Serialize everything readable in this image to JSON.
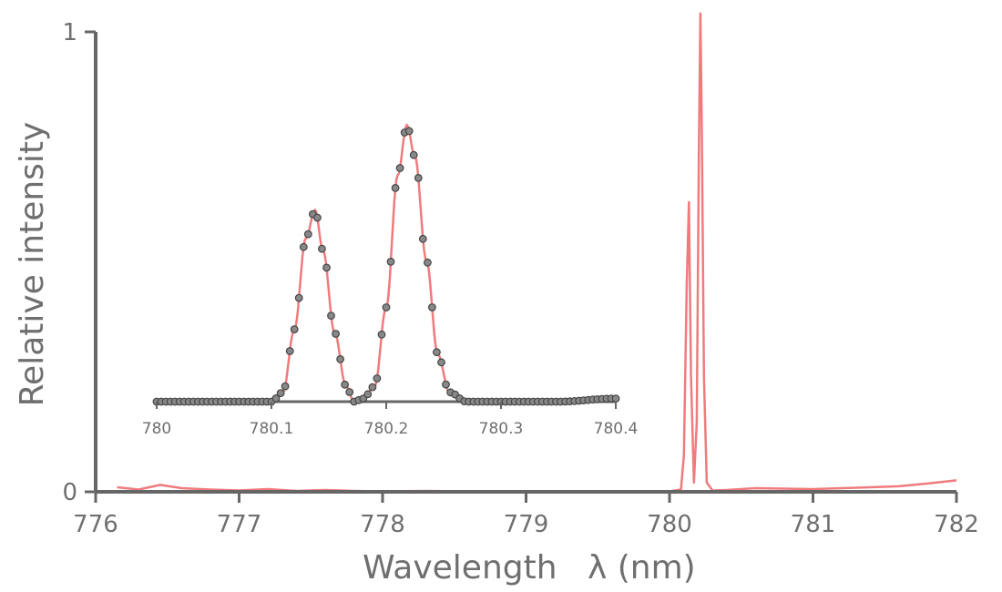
{
  "chart_data": {
    "type": "line",
    "main": {
      "xlabel": "Wavelength",
      "xlabel_symbol": "λ (nm)",
      "ylabel": "Relative intensity",
      "xlim": [
        776,
        782
      ],
      "ylim": [
        0,
        1
      ],
      "xticks": [
        "776",
        "777",
        "778",
        "779",
        "780",
        "781",
        "782"
      ],
      "yticks": [
        "0",
        "1"
      ],
      "grid": false,
      "line_color": "#ef7b7d",
      "axis_color": "#666666",
      "series": [
        {
          "x": [
            776.15,
            776.3,
            776.45,
            776.6,
            776.8,
            777.0,
            777.2,
            777.4,
            777.6,
            777.8,
            778.0,
            778.3,
            778.6,
            779.0,
            779.5,
            780.0,
            780.08,
            780.1,
            780.12,
            780.135,
            780.15,
            780.17,
            780.19,
            780.205,
            780.215,
            780.225,
            780.24,
            780.26,
            780.3,
            780.4,
            780.5,
            780.6,
            780.8,
            781.0,
            781.2,
            781.4,
            781.6,
            781.8,
            782.0
          ],
          "y": [
            0.01,
            0.005,
            0.015,
            0.008,
            0.005,
            0.003,
            0.006,
            0.002,
            0.004,
            0.002,
            0.001,
            0.002,
            0.001,
            0.001,
            0.001,
            0.001,
            0.005,
            0.08,
            0.45,
            0.63,
            0.25,
            0.02,
            0.15,
            0.75,
            1.04,
            0.8,
            0.25,
            0.02,
            0.003,
            0.004,
            0.006,
            0.008,
            0.007,
            0.006,
            0.008,
            0.01,
            0.012,
            0.018,
            0.025
          ]
        }
      ]
    },
    "inset": {
      "xlim": [
        780,
        780.4
      ],
      "xticks": [
        "780",
        "780.1",
        "780.2",
        "780.3",
        "780.4"
      ],
      "line_color": "#ef7b7d",
      "marker_color": "#888888",
      "series": [
        {
          "x": [
            780.0,
            780.1,
            780.11,
            780.12,
            780.13,
            780.138,
            780.145,
            780.155,
            780.165,
            780.172,
            780.18,
            780.19,
            780.2,
            780.21,
            780.218,
            780.225,
            780.235,
            780.245,
            780.255,
            780.27,
            780.3,
            780.35,
            780.4
          ],
          "y": [
            0.0,
            0.0,
            0.03,
            0.23,
            0.52,
            0.61,
            0.48,
            0.22,
            0.05,
            0.0,
            0.01,
            0.05,
            0.3,
            0.72,
            0.88,
            0.78,
            0.45,
            0.15,
            0.03,
            0.0,
            0.0,
            0.0,
            0.01
          ]
        }
      ]
    }
  }
}
